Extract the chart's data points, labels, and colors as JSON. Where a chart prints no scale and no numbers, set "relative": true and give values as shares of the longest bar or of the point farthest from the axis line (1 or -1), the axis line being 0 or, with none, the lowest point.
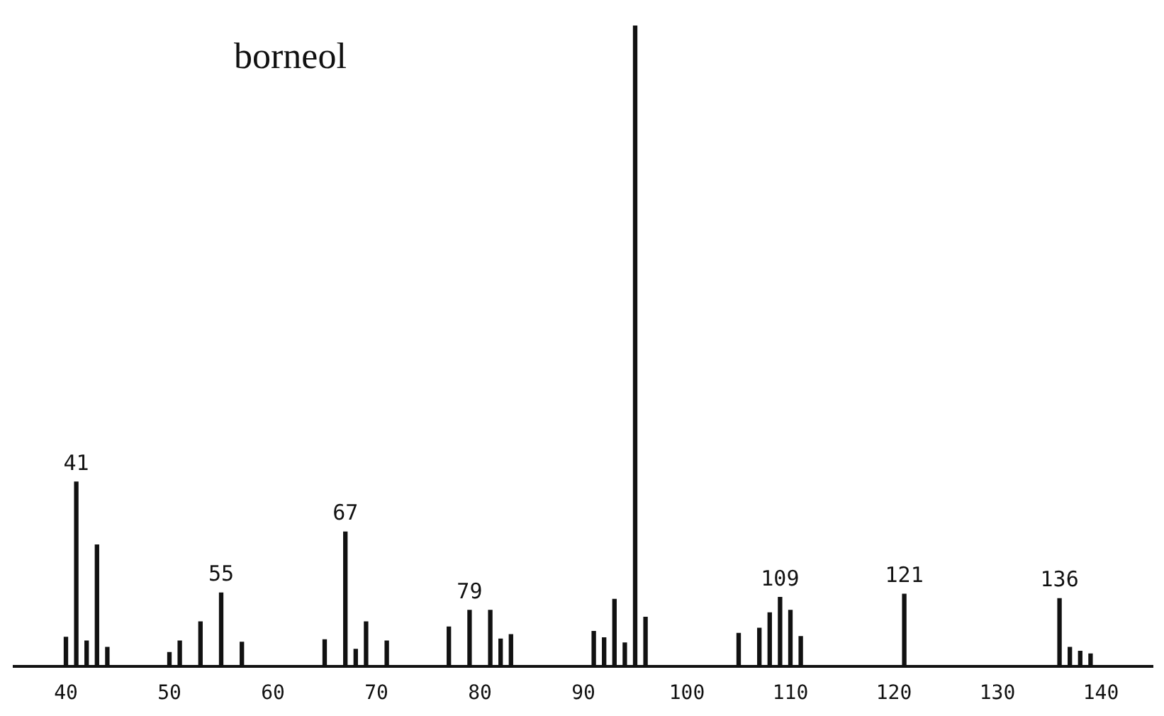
{
  "chart_data": {
    "type": "bar",
    "title": "borneol",
    "relative": true,
    "x": [
      40,
      41,
      42,
      43,
      44,
      50,
      51,
      53,
      55,
      57,
      65,
      67,
      68,
      69,
      71,
      77,
      79,
      81,
      82,
      83,
      91,
      92,
      93,
      94,
      95,
      96,
      105,
      107,
      108,
      109,
      110,
      111,
      121,
      136,
      137,
      138,
      139
    ],
    "values": [
      0.046,
      0.288,
      0.04,
      0.19,
      0.03,
      0.022,
      0.04,
      0.07,
      0.115,
      0.038,
      0.042,
      0.21,
      0.027,
      0.07,
      0.04,
      0.062,
      0.088,
      0.088,
      0.043,
      0.05,
      0.055,
      0.045,
      0.105,
      0.037,
      1,
      0.077,
      0.052,
      0.06,
      0.084,
      0.108,
      0.088,
      0.047,
      0.113,
      0.106,
      0.03,
      0.024,
      0.02
    ],
    "annotations": [
      {
        "text": "41",
        "x": 41,
        "y": 0.288
      },
      {
        "text": "55",
        "x": 55,
        "y": 0.115
      },
      {
        "text": "67",
        "x": 67,
        "y": 0.21
      },
      {
        "text": "79",
        "x": 79,
        "y": 0.088
      },
      {
        "text": "109",
        "x": 109,
        "y": 0.108
      },
      {
        "text": "121",
        "x": 121,
        "y": 0.113
      },
      {
        "text": "136",
        "x": 136,
        "y": 0.106
      }
    ],
    "color": "#111111",
    "xlim": [
      35,
      145
    ],
    "xticks": [
      40,
      50,
      60,
      70,
      80,
      90,
      100,
      110,
      120,
      130,
      140
    ],
    "grid": false,
    "legend": false
  }
}
